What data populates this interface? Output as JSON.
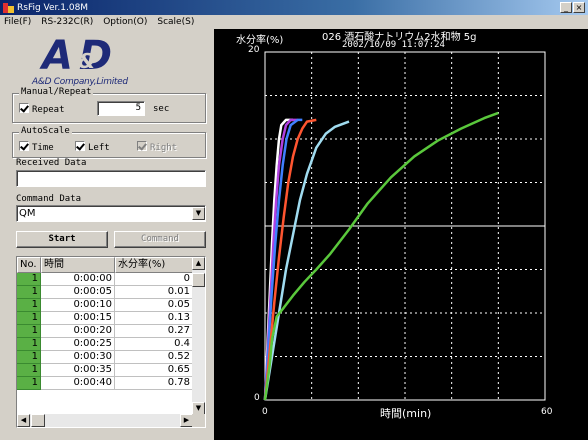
{
  "window": {
    "title": "RsFig Ver.1.08M",
    "min": "_",
    "close": "×"
  },
  "menu": [
    "File(F)",
    "RS-232C(R)",
    "Option(O)",
    "Scale(S)"
  ],
  "logo": {
    "mark": "A D",
    "amp": "&",
    "name": "A&D Company,Limited"
  },
  "manual_repeat": {
    "legend": "Manual/Repeat",
    "repeat_label": "Repeat",
    "repeat_checked": true,
    "interval": "5",
    "unit": "sec"
  },
  "autoscale": {
    "legend": "AutoScale",
    "time_label": "Time",
    "left_label": "Left",
    "right_label": "Right",
    "time_checked": true,
    "left_checked": true,
    "right_checked": true,
    "right_disabled": true
  },
  "received": {
    "label": "Received Data",
    "value": ""
  },
  "command": {
    "label": "Command Data",
    "value": "QM"
  },
  "buttons": {
    "start": "Start",
    "command": "Command"
  },
  "table": {
    "headers": [
      "No.",
      "時間",
      "水分率(%)"
    ],
    "rows": [
      [
        "1",
        "0:00:00",
        "0"
      ],
      [
        "1",
        "0:00:05",
        "0.01"
      ],
      [
        "1",
        "0:00:10",
        "0.05"
      ],
      [
        "1",
        "0:00:15",
        "0.13"
      ],
      [
        "1",
        "0:00:20",
        "0.27"
      ],
      [
        "1",
        "0:00:25",
        "0.4"
      ],
      [
        "1",
        "0:00:30",
        "0.52"
      ],
      [
        "1",
        "0:00:35",
        "0.65"
      ],
      [
        "1",
        "0:00:40",
        "0.78"
      ]
    ]
  },
  "chart_data": {
    "type": "line",
    "title": "026 酒石酸ナトリウム2水和物 5g",
    "subtitle": "2002/10/09 11:07:24",
    "ylabel": "水分率(%)",
    "xlabel": "時間(min)",
    "xlim": [
      0,
      60
    ],
    "ylim": [
      0,
      20
    ],
    "x_ticks": [
      "0",
      "60"
    ],
    "y_ticks": [
      "0",
      "20"
    ],
    "grid": true,
    "series": [
      {
        "color": "#ffffff",
        "x": [
          0,
          0.5,
          1,
          1.5,
          2,
          2.5,
          3,
          3.5,
          4.5,
          6
        ],
        "y": [
          0,
          3,
          6,
          9,
          11.5,
          13.5,
          15,
          15.8,
          16.1,
          16.1
        ]
      },
      {
        "color": "#b040e0",
        "x": [
          0,
          0.6,
          1.2,
          1.8,
          2.4,
          3,
          3.8,
          4.5,
          5.5,
          7
        ],
        "y": [
          0,
          3,
          6,
          9,
          11.5,
          13.5,
          15,
          15.8,
          16.1,
          16.1
        ]
      },
      {
        "color": "#4080ff",
        "x": [
          0,
          0.7,
          1.4,
          2.2,
          3,
          3.8,
          4.6,
          5.5,
          7,
          8
        ],
        "y": [
          0,
          3,
          6,
          9,
          11.5,
          13.5,
          15,
          15.8,
          16.1,
          16.1
        ]
      },
      {
        "color": "#ff5530",
        "x": [
          0,
          1,
          2,
          3,
          4,
          5,
          6,
          7,
          8,
          9,
          11
        ],
        "y": [
          0,
          2.8,
          5.6,
          8.2,
          10.5,
          12.5,
          14,
          15,
          15.6,
          16,
          16.1
        ]
      },
      {
        "color": "#a0dcf0",
        "x": [
          0,
          1.5,
          3,
          4.5,
          6,
          7.5,
          9,
          11,
          13,
          15,
          18
        ],
        "y": [
          0,
          2.5,
          5,
          7.5,
          9.5,
          11.5,
          13,
          14.5,
          15.3,
          15.7,
          16
        ]
      },
      {
        "color": "#5ac83c",
        "x": [
          0,
          0.5,
          1,
          1.5,
          2.5,
          4,
          6,
          8.5,
          11,
          14,
          18,
          22,
          27,
          32,
          37,
          42,
          47,
          50
        ],
        "y": [
          0,
          1,
          2,
          3.5,
          4.8,
          5.3,
          6,
          6.8,
          7.5,
          8.4,
          9.8,
          11.3,
          12.8,
          14,
          14.9,
          15.6,
          16.2,
          16.5
        ]
      }
    ]
  }
}
